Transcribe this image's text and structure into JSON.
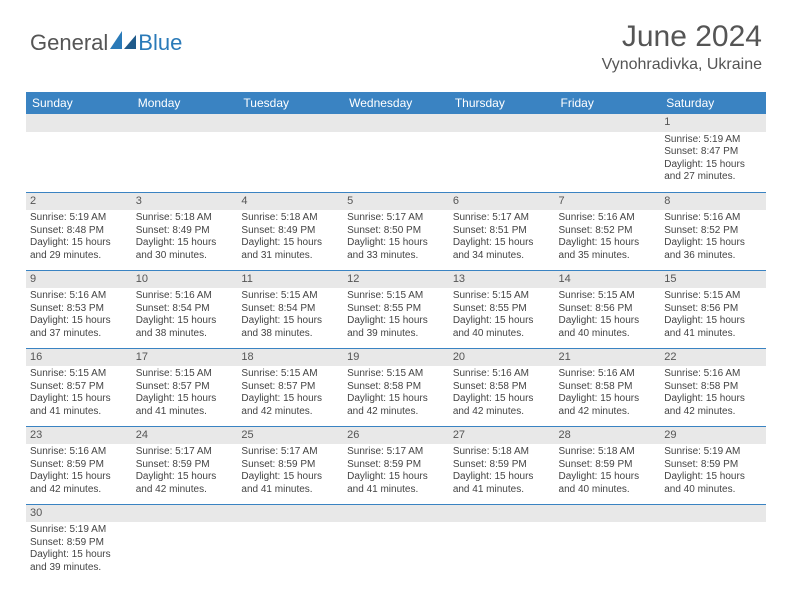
{
  "brand": {
    "general": "General",
    "blue": "Blue"
  },
  "title": "June 2024",
  "location": "Vynohradivka, Ukraine",
  "colors": {
    "header_bg": "#3a83c2",
    "header_text": "#ffffff",
    "daynum_bg": "#e8e8e8",
    "text": "#444444",
    "title": "#555555",
    "brand_blue": "#2a7ab8"
  },
  "weekdays": [
    "Sunday",
    "Monday",
    "Tuesday",
    "Wednesday",
    "Thursday",
    "Friday",
    "Saturday"
  ],
  "weeks": [
    [
      null,
      null,
      null,
      null,
      null,
      null,
      {
        "n": "1",
        "sr": "5:19 AM",
        "ss": "8:47 PM",
        "dh": "15",
        "dm": "27"
      }
    ],
    [
      {
        "n": "2",
        "sr": "5:19 AM",
        "ss": "8:48 PM",
        "dh": "15",
        "dm": "29"
      },
      {
        "n": "3",
        "sr": "5:18 AM",
        "ss": "8:49 PM",
        "dh": "15",
        "dm": "30"
      },
      {
        "n": "4",
        "sr": "5:18 AM",
        "ss": "8:49 PM",
        "dh": "15",
        "dm": "31"
      },
      {
        "n": "5",
        "sr": "5:17 AM",
        "ss": "8:50 PM",
        "dh": "15",
        "dm": "33"
      },
      {
        "n": "6",
        "sr": "5:17 AM",
        "ss": "8:51 PM",
        "dh": "15",
        "dm": "34"
      },
      {
        "n": "7",
        "sr": "5:16 AM",
        "ss": "8:52 PM",
        "dh": "15",
        "dm": "35"
      },
      {
        "n": "8",
        "sr": "5:16 AM",
        "ss": "8:52 PM",
        "dh": "15",
        "dm": "36"
      }
    ],
    [
      {
        "n": "9",
        "sr": "5:16 AM",
        "ss": "8:53 PM",
        "dh": "15",
        "dm": "37"
      },
      {
        "n": "10",
        "sr": "5:16 AM",
        "ss": "8:54 PM",
        "dh": "15",
        "dm": "38"
      },
      {
        "n": "11",
        "sr": "5:15 AM",
        "ss": "8:54 PM",
        "dh": "15",
        "dm": "38"
      },
      {
        "n": "12",
        "sr": "5:15 AM",
        "ss": "8:55 PM",
        "dh": "15",
        "dm": "39"
      },
      {
        "n": "13",
        "sr": "5:15 AM",
        "ss": "8:55 PM",
        "dh": "15",
        "dm": "40"
      },
      {
        "n": "14",
        "sr": "5:15 AM",
        "ss": "8:56 PM",
        "dh": "15",
        "dm": "40"
      },
      {
        "n": "15",
        "sr": "5:15 AM",
        "ss": "8:56 PM",
        "dh": "15",
        "dm": "41"
      }
    ],
    [
      {
        "n": "16",
        "sr": "5:15 AM",
        "ss": "8:57 PM",
        "dh": "15",
        "dm": "41"
      },
      {
        "n": "17",
        "sr": "5:15 AM",
        "ss": "8:57 PM",
        "dh": "15",
        "dm": "41"
      },
      {
        "n": "18",
        "sr": "5:15 AM",
        "ss": "8:57 PM",
        "dh": "15",
        "dm": "42"
      },
      {
        "n": "19",
        "sr": "5:15 AM",
        "ss": "8:58 PM",
        "dh": "15",
        "dm": "42"
      },
      {
        "n": "20",
        "sr": "5:16 AM",
        "ss": "8:58 PM",
        "dh": "15",
        "dm": "42"
      },
      {
        "n": "21",
        "sr": "5:16 AM",
        "ss": "8:58 PM",
        "dh": "15",
        "dm": "42"
      },
      {
        "n": "22",
        "sr": "5:16 AM",
        "ss": "8:58 PM",
        "dh": "15",
        "dm": "42"
      }
    ],
    [
      {
        "n": "23",
        "sr": "5:16 AM",
        "ss": "8:59 PM",
        "dh": "15",
        "dm": "42"
      },
      {
        "n": "24",
        "sr": "5:17 AM",
        "ss": "8:59 PM",
        "dh": "15",
        "dm": "42"
      },
      {
        "n": "25",
        "sr": "5:17 AM",
        "ss": "8:59 PM",
        "dh": "15",
        "dm": "41"
      },
      {
        "n": "26",
        "sr": "5:17 AM",
        "ss": "8:59 PM",
        "dh": "15",
        "dm": "41"
      },
      {
        "n": "27",
        "sr": "5:18 AM",
        "ss": "8:59 PM",
        "dh": "15",
        "dm": "41"
      },
      {
        "n": "28",
        "sr": "5:18 AM",
        "ss": "8:59 PM",
        "dh": "15",
        "dm": "40"
      },
      {
        "n": "29",
        "sr": "5:19 AM",
        "ss": "8:59 PM",
        "dh": "15",
        "dm": "40"
      }
    ],
    [
      {
        "n": "30",
        "sr": "5:19 AM",
        "ss": "8:59 PM",
        "dh": "15",
        "dm": "39"
      },
      null,
      null,
      null,
      null,
      null,
      null
    ]
  ],
  "labels": {
    "sunrise": "Sunrise:",
    "sunset": "Sunset:",
    "daylight_prefix": "Daylight:",
    "hours_word": "hours",
    "and_word": "and",
    "minutes_word": "minutes."
  }
}
